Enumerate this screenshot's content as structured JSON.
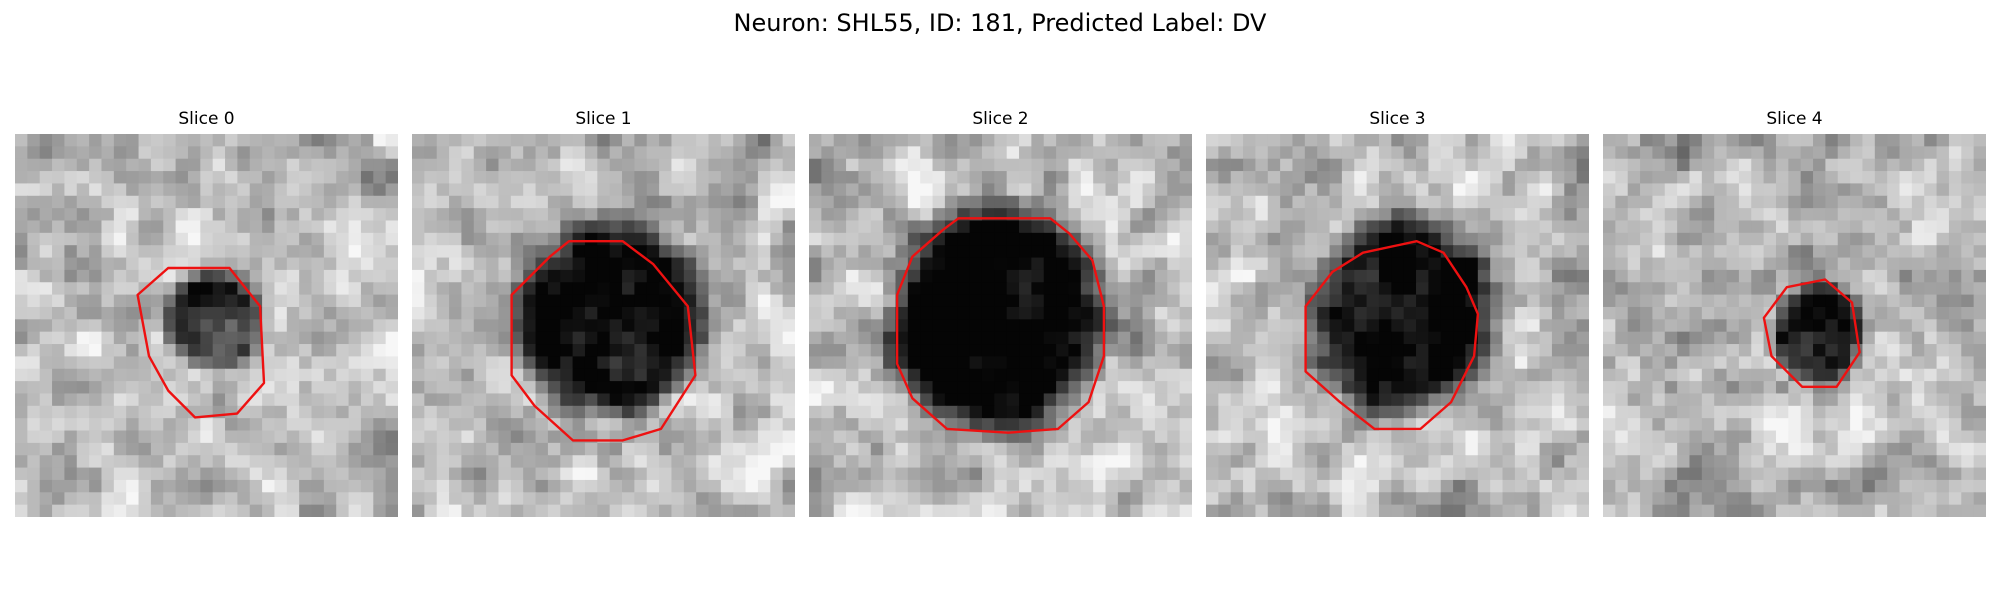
{
  "figure": {
    "title": "Neuron: SHL55, ID: 181, Predicted Label: DV"
  },
  "colors": {
    "contour": "#ee1111",
    "background": "#ffffff"
  },
  "panels": [
    {
      "title": "Slice 0",
      "blob": {
        "center": [
          0.52,
          0.49
        ],
        "radii": [
          0.12,
          0.12
        ],
        "strength": 0.55
      },
      "contour": [
        [
          0.4,
          0.35
        ],
        [
          0.56,
          0.35
        ],
        [
          0.64,
          0.45
        ],
        [
          0.65,
          0.65
        ],
        [
          0.58,
          0.73
        ],
        [
          0.47,
          0.74
        ],
        [
          0.4,
          0.67
        ],
        [
          0.35,
          0.58
        ],
        [
          0.32,
          0.42
        ]
      ],
      "seed": 11
    },
    {
      "title": "Slice 1",
      "blob": {
        "center": [
          0.52,
          0.48
        ],
        "radii": [
          0.22,
          0.23
        ],
        "strength": 0.72
      },
      "contour": [
        [
          0.36,
          0.32
        ],
        [
          0.41,
          0.28
        ],
        [
          0.55,
          0.28
        ],
        [
          0.63,
          0.34
        ],
        [
          0.72,
          0.45
        ],
        [
          0.74,
          0.63
        ],
        [
          0.65,
          0.77
        ],
        [
          0.55,
          0.8
        ],
        [
          0.42,
          0.8
        ],
        [
          0.32,
          0.71
        ],
        [
          0.26,
          0.63
        ],
        [
          0.26,
          0.42
        ]
      ],
      "seed": 23
    },
    {
      "title": "Slice 2",
      "blob": {
        "center": [
          0.49,
          0.48
        ],
        "radii": [
          0.26,
          0.27
        ],
        "strength": 0.8
      },
      "contour": [
        [
          0.35,
          0.25
        ],
        [
          0.39,
          0.22
        ],
        [
          0.63,
          0.22
        ],
        [
          0.68,
          0.26
        ],
        [
          0.74,
          0.33
        ],
        [
          0.77,
          0.45
        ],
        [
          0.77,
          0.58
        ],
        [
          0.73,
          0.7
        ],
        [
          0.65,
          0.77
        ],
        [
          0.52,
          0.78
        ],
        [
          0.36,
          0.77
        ],
        [
          0.27,
          0.69
        ],
        [
          0.23,
          0.6
        ],
        [
          0.23,
          0.42
        ],
        [
          0.27,
          0.32
        ]
      ],
      "seed": 37
    },
    {
      "title": "Slice 3",
      "blob": {
        "center": [
          0.51,
          0.48
        ],
        "radii": [
          0.22,
          0.24
        ],
        "strength": 0.7
      },
      "contour": [
        [
          0.33,
          0.36
        ],
        [
          0.41,
          0.31
        ],
        [
          0.55,
          0.28
        ],
        [
          0.62,
          0.31
        ],
        [
          0.68,
          0.4
        ],
        [
          0.71,
          0.47
        ],
        [
          0.7,
          0.58
        ],
        [
          0.64,
          0.7
        ],
        [
          0.56,
          0.77
        ],
        [
          0.44,
          0.77
        ],
        [
          0.35,
          0.7
        ],
        [
          0.26,
          0.62
        ],
        [
          0.26,
          0.45
        ]
      ],
      "seed": 51
    },
    {
      "title": "Slice 4",
      "blob": {
        "center": [
          0.56,
          0.52
        ],
        "radii": [
          0.11,
          0.12
        ],
        "strength": 0.7
      },
      "contour": [
        [
          0.48,
          0.4
        ],
        [
          0.58,
          0.38
        ],
        [
          0.65,
          0.44
        ],
        [
          0.67,
          0.57
        ],
        [
          0.61,
          0.66
        ],
        [
          0.52,
          0.66
        ],
        [
          0.44,
          0.58
        ],
        [
          0.42,
          0.48
        ]
      ],
      "seed": 67
    }
  ]
}
